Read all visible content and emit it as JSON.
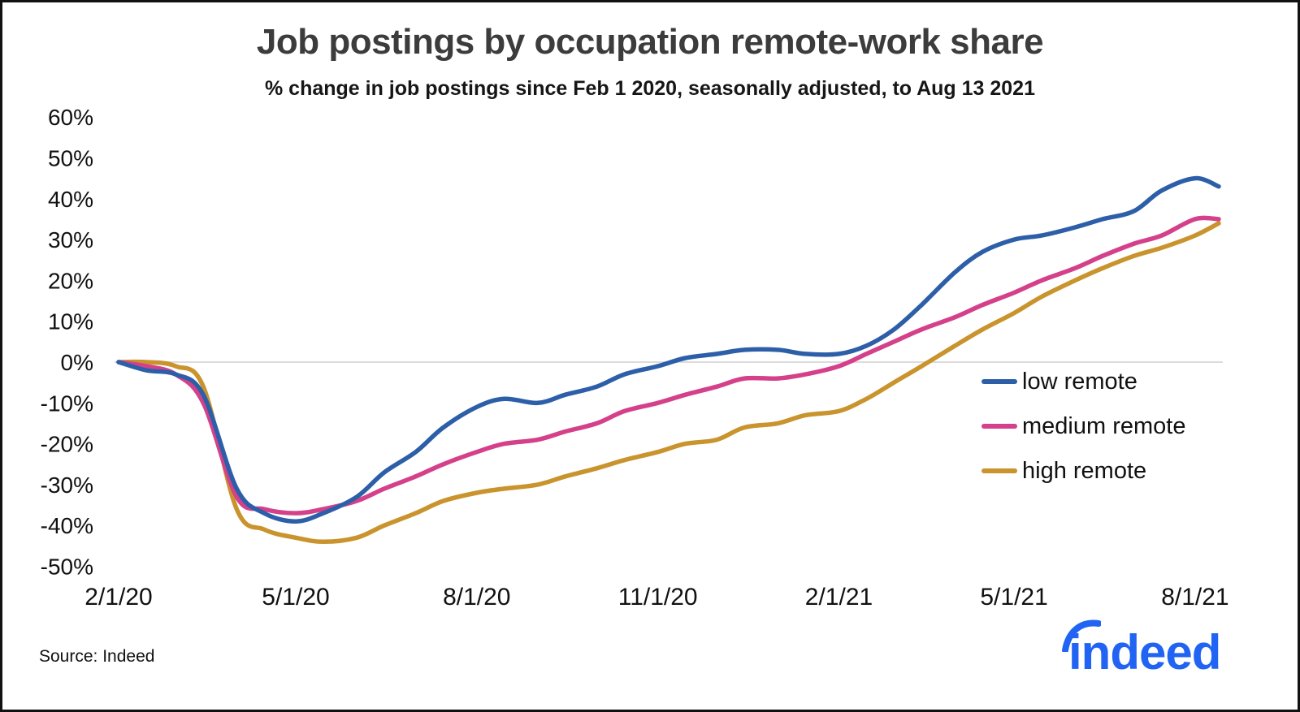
{
  "chart": {
    "title": "Job postings by occupation remote-work share",
    "subtitle": "% change in job postings since Feb 1 2020, seasonally adjusted, to Aug 13 2021"
  },
  "chart_data": {
    "type": "line",
    "x": [
      "2/1/20",
      "2/15/20",
      "3/1/20",
      "3/15/20",
      "4/1/20",
      "4/15/20",
      "5/1/20",
      "5/15/20",
      "6/1/20",
      "6/15/20",
      "7/1/20",
      "7/15/20",
      "8/1/20",
      "8/15/20",
      "9/1/20",
      "9/15/20",
      "10/1/20",
      "10/15/20",
      "11/1/20",
      "11/15/20",
      "12/1/20",
      "12/15/20",
      "1/1/21",
      "1/15/21",
      "2/1/21",
      "2/15/21",
      "3/1/21",
      "3/15/21",
      "4/1/21",
      "4/15/21",
      "5/1/21",
      "5/15/21",
      "6/1/21",
      "6/15/21",
      "7/1/21",
      "7/15/21",
      "8/1/21",
      "8/13/21"
    ],
    "series": [
      {
        "name": "low remote",
        "color": "#2d5fa9",
        "values": [
          0,
          -2,
          -3,
          -8,
          -31,
          -37,
          -39,
          -37,
          -33,
          -27,
          -22,
          -16,
          -11,
          -9,
          -10,
          -8,
          -6,
          -3,
          -1,
          1,
          2,
          3,
          3,
          2,
          2,
          4,
          8,
          14,
          22,
          27,
          30,
          31,
          33,
          35,
          37,
          42,
          45,
          43
        ]
      },
      {
        "name": "medium remote",
        "color": "#d4418a",
        "values": [
          0,
          -1,
          -3,
          -10,
          -33,
          -36,
          -37,
          -36,
          -34,
          -31,
          -28,
          -25,
          -22,
          -20,
          -19,
          -17,
          -15,
          -12,
          -10,
          -8,
          -6,
          -4,
          -4,
          -3,
          -1,
          2,
          5,
          8,
          11,
          14,
          17,
          20,
          23,
          26,
          29,
          31,
          35,
          35
        ]
      },
      {
        "name": "high remote",
        "color": "#c9942d",
        "values": [
          0,
          0,
          -1,
          -6,
          -36,
          -41,
          -43,
          -44,
          -43,
          -40,
          -37,
          -34,
          -32,
          -31,
          -30,
          -28,
          -26,
          -24,
          -22,
          -20,
          -19,
          -16,
          -15,
          -13,
          -12,
          -9,
          -5,
          -1,
          4,
          8,
          12,
          16,
          20,
          23,
          26,
          28,
          31,
          34
        ]
      }
    ],
    "x_ticks": [
      "2/1/20",
      "5/1/20",
      "8/1/20",
      "11/1/20",
      "2/1/21",
      "5/1/21",
      "8/1/21"
    ],
    "y_ticks": [
      {
        "label": "60%",
        "value": 60
      },
      {
        "label": "50%",
        "value": 50
      },
      {
        "label": "40%",
        "value": 40
      },
      {
        "label": "30%",
        "value": 30
      },
      {
        "label": "20%",
        "value": 20
      },
      {
        "label": "10%",
        "value": 10
      },
      {
        "label": "0%",
        "value": 0
      },
      {
        "label": "-10%",
        "value": -10
      },
      {
        "label": "-20%",
        "value": -20
      },
      {
        "label": "-30%",
        "value": -30
      },
      {
        "label": "-40%",
        "value": -40
      },
      {
        "label": "-50%",
        "value": -50
      }
    ],
    "ylim": [
      -50,
      60
    ],
    "grid": "zero-line-only",
    "legend_position": "inside-right-middle",
    "title": "Job postings by occupation remote-work share",
    "xlabel": "",
    "ylabel": "% change in job postings since Feb 1 2020"
  },
  "footer": {
    "source": "Source: Indeed",
    "logo_text": "indeed",
    "logo_color": "#2164f3"
  }
}
